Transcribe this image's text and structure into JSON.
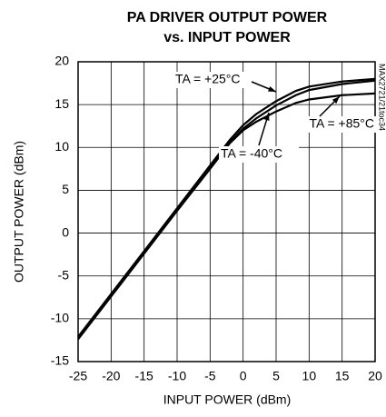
{
  "chart_data": {
    "type": "line",
    "title": [
      "PA DRIVER OUTPUT POWER",
      "vs. INPUT POWER"
    ],
    "x_label": "INPUT POWER (dBm)",
    "y_label": "OUTPUT POWER (dBm)",
    "side_note": "MAX2721/21toc34",
    "x": [
      -25,
      -20,
      -15,
      -10,
      -5,
      -2,
      0,
      2,
      5,
      8,
      10,
      15,
      20
    ],
    "series": [
      {
        "name": "TA = +25°C",
        "color": "#000000",
        "values": [
          -12.2,
          -7.2,
          -2.2,
          2.8,
          7.7,
          10.6,
          12.2,
          13.4,
          14.9,
          16.1,
          16.7,
          17.4,
          17.8
        ]
      },
      {
        "name": "TA = -40°C",
        "color": "#000000",
        "values": [
          -12.1,
          -7.1,
          -2.1,
          2.9,
          7.9,
          10.9,
          12.6,
          13.9,
          15.4,
          16.6,
          17.1,
          17.7,
          18.0
        ]
      },
      {
        "name": "TA = +85°C",
        "color": "#000000",
        "values": [
          -12.4,
          -7.4,
          -2.4,
          2.6,
          7.5,
          10.5,
          12.0,
          13.0,
          14.2,
          15.2,
          15.6,
          16.1,
          16.3
        ]
      }
    ],
    "xlim": [
      -25,
      20
    ],
    "xticks": [
      -25,
      -20,
      -15,
      -10,
      -5,
      0,
      5,
      10,
      15,
      20
    ],
    "ylim": [
      -15,
      20
    ],
    "yticks": [
      -15,
      -10,
      -5,
      0,
      5,
      10,
      15,
      20
    ],
    "grid": true
  }
}
